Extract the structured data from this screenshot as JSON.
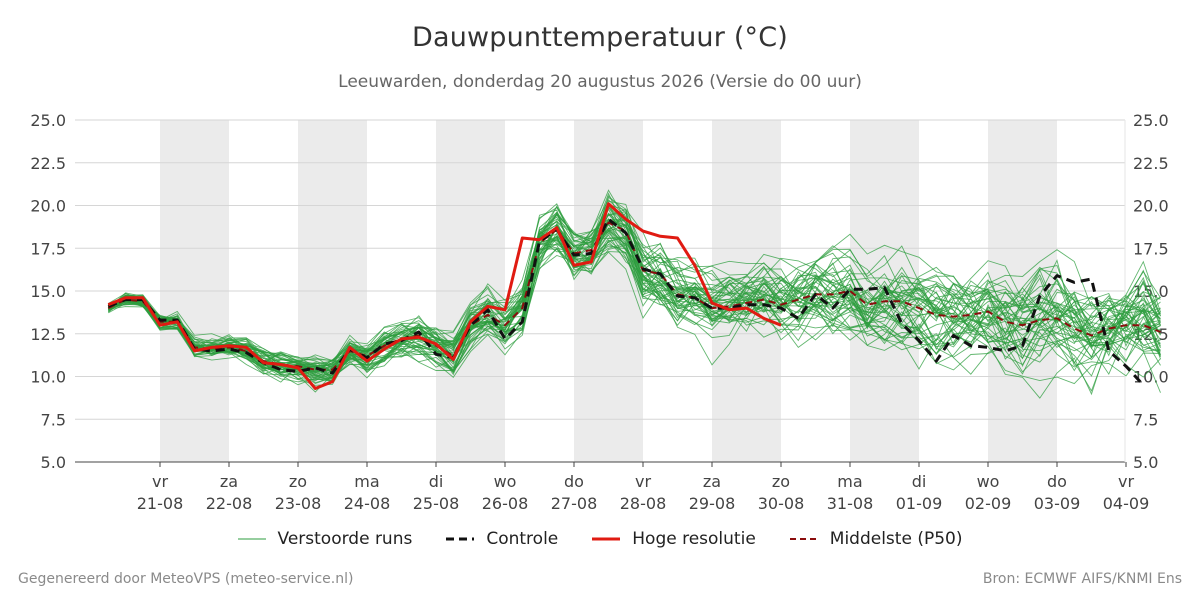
{
  "header": {
    "title": "Dauwpunttemperatuur (°C)",
    "subtitle": "Leeuwarden, donderdag 20 augustus 2026 (Versie do 00 uur)"
  },
  "footer": {
    "left": "Gegenereerd door MeteoVPS (meteo-service.nl)",
    "right": "Bron: ECMWF AIFS/KNMI Ens"
  },
  "legend": {
    "ensemble": "Verstoorde runs",
    "control": "Controle",
    "highres": "Hoge resolutie",
    "median": "Middelste (P50)"
  },
  "colors": {
    "ensemble": "#2e9e3f",
    "control": "#111111",
    "highres": "#e01b12",
    "median": "#8b0d0d",
    "weekend_band": "#ebebeb",
    "grid": "#d6d6d6"
  },
  "chart_data": {
    "type": "line",
    "title": "Dauwpunttemperatuur (°C)",
    "ylim": [
      5.0,
      25.0
    ],
    "yticks": [
      "5.0",
      "7.5",
      "10.0",
      "12.5",
      "15.0",
      "17.5",
      "20.0",
      "22.5",
      "25.0"
    ],
    "x_start": "2026-08-20 06:00",
    "x_step_hours": 6,
    "day_labels": [
      {
        "date": "2026-08-21",
        "day": "vr",
        "label": "21-08"
      },
      {
        "date": "2026-08-22",
        "day": "za",
        "label": "22-08"
      },
      {
        "date": "2026-08-23",
        "day": "zo",
        "label": "23-08"
      },
      {
        "date": "2026-08-24",
        "day": "ma",
        "label": "24-08"
      },
      {
        "date": "2026-08-25",
        "day": "di",
        "label": "25-08"
      },
      {
        "date": "2026-08-26",
        "day": "wo",
        "label": "26-08"
      },
      {
        "date": "2026-08-27",
        "day": "do",
        "label": "27-08"
      },
      {
        "date": "2026-08-28",
        "day": "vr",
        "label": "28-08"
      },
      {
        "date": "2026-08-29",
        "day": "za",
        "label": "29-08"
      },
      {
        "date": "2026-08-30",
        "day": "zo",
        "label": "30-08"
      },
      {
        "date": "2026-08-31",
        "day": "ma",
        "label": "31-08"
      },
      {
        "date": "2026-09-01",
        "day": "di",
        "label": "01-09"
      },
      {
        "date": "2026-09-02",
        "day": "wo",
        "label": "02-09"
      },
      {
        "date": "2026-09-03",
        "day": "do",
        "label": "03-09"
      },
      {
        "date": "2026-09-04",
        "day": "vr",
        "label": "04-09"
      }
    ],
    "shaded_days": [
      "2026-08-21",
      "2026-08-23",
      "2026-08-25",
      "2026-08-27",
      "2026-08-29",
      "2026-08-31",
      "2026-09-02"
    ],
    "series": [
      {
        "name": "Hoge resolutie",
        "style": "solid",
        "values": [
          14.2,
          14.6,
          14.6,
          13.0,
          13.2,
          11.5,
          11.7,
          11.8,
          11.7,
          10.8,
          10.7,
          10.5,
          9.3,
          9.7,
          11.7,
          10.9,
          11.6,
          12.2,
          12.3,
          11.9,
          11.0,
          13.2,
          14.1,
          13.9,
          18.1,
          18.0,
          18.7,
          16.5,
          16.7,
          20.1,
          19.2,
          18.5,
          18.2,
          18.1,
          16.5,
          14.3,
          13.9,
          14.0,
          13.4,
          13.0
        ]
      },
      {
        "name": "Controle",
        "style": "dashed",
        "values": [
          14.1,
          14.5,
          14.5,
          13.3,
          13.3,
          11.6,
          11.5,
          11.6,
          11.4,
          10.8,
          10.4,
          10.3,
          10.5,
          10.2,
          11.6,
          11.1,
          11.9,
          12.1,
          12.6,
          11.3,
          11.1,
          13.0,
          13.9,
          12.2,
          13.2,
          17.9,
          18.6,
          17.1,
          17.2,
          19.2,
          18.4,
          16.3,
          16.0,
          14.7,
          14.6,
          14.0,
          14.0,
          14.2,
          14.2,
          14.0,
          13.4,
          14.8,
          14.0,
          15.1,
          15.1,
          15.2,
          13.1,
          12.1,
          10.9,
          12.4,
          11.8,
          11.7,
          11.5,
          11.8,
          14.7,
          15.9,
          15.5,
          15.7,
          11.5,
          10.6,
          9.5
        ]
      },
      {
        "name": "Middelste (P50)",
        "style": "dashed",
        "values": [
          14.0,
          14.5,
          14.4,
          13.2,
          13.2,
          11.7,
          11.6,
          11.7,
          11.5,
          10.9,
          10.7,
          10.6,
          10.4,
          10.4,
          11.5,
          11.2,
          11.8,
          12.2,
          12.4,
          11.8,
          11.2,
          13.0,
          13.6,
          13.0,
          14.0,
          17.8,
          18.6,
          17.2,
          17.4,
          19.0,
          18.5,
          16.2,
          16.0,
          14.8,
          14.6,
          14.0,
          14.1,
          14.3,
          14.5,
          14.2,
          14.5,
          14.8,
          14.8,
          15.0,
          14.2,
          14.4,
          14.4,
          14.0,
          13.6,
          13.5,
          13.6,
          13.8,
          13.2,
          13.0,
          13.3,
          13.4,
          12.8,
          12.4,
          12.8,
          13.0,
          13.0,
          12.6
        ]
      }
    ],
    "ensemble": {
      "name": "Verstoorde runs",
      "members": 50,
      "spread_note": "Spread indicated by band of member lines"
    }
  }
}
